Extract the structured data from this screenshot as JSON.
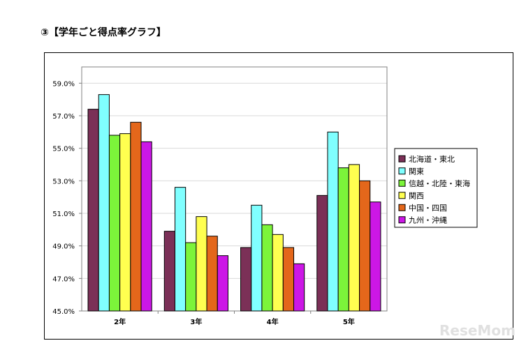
{
  "heading": "③【学年ごと得点率グラフ】",
  "watermark": "ReseMom",
  "chart_data": {
    "type": "bar",
    "categories": [
      "2年",
      "3年",
      "4年",
      "5年"
    ],
    "ylim": [
      45.0,
      60.0
    ],
    "yticks": [
      "45.0%",
      "47.0%",
      "49.0%",
      "51.0%",
      "53.0%",
      "55.0%",
      "57.0%",
      "59.0%"
    ],
    "ytick_values": [
      45,
      47,
      49,
      51,
      53,
      55,
      57,
      59
    ],
    "grid": true,
    "legend_position": "right",
    "series": [
      {
        "name": "北海道・東北",
        "color": "#7b3057",
        "values": [
          57.4,
          49.9,
          48.9,
          52.1
        ]
      },
      {
        "name": "関東",
        "color": "#80ffff",
        "values": [
          58.3,
          52.6,
          51.5,
          56.0
        ]
      },
      {
        "name": "信越・北陸・東海",
        "color": "#7cf43a",
        "values": [
          55.8,
          49.2,
          50.3,
          53.8
        ]
      },
      {
        "name": "関西",
        "color": "#ffff50",
        "values": [
          55.9,
          50.8,
          49.7,
          54.0
        ]
      },
      {
        "name": "中国・四国",
        "color": "#e4671b",
        "values": [
          56.6,
          49.6,
          48.9,
          53.0
        ]
      },
      {
        "name": "九州・沖縄",
        "color": "#cc17e6",
        "values": [
          55.4,
          48.4,
          47.9,
          51.7
        ]
      }
    ]
  }
}
